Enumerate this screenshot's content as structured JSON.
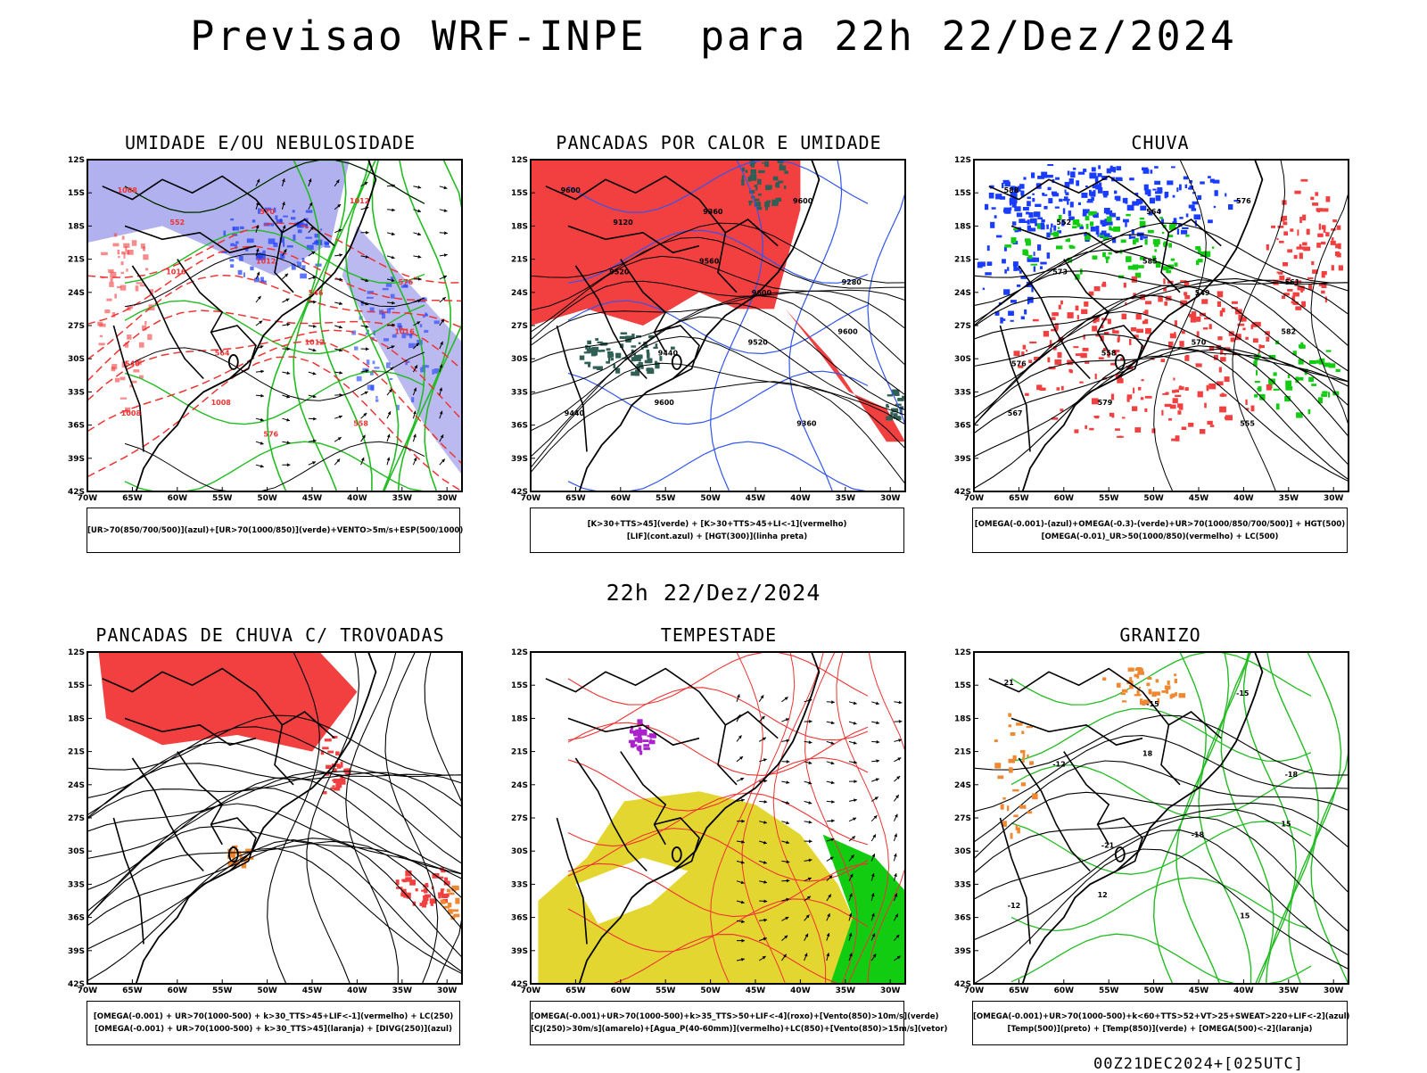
{
  "title": "Previsao WRF-INPE  para 22h 22/Dez/2024",
  "mid_title": "22h 22/Dez/2024",
  "footer": "00Z21DEC2024+[025UTC]",
  "axes": {
    "lat_labels": [
      "12S",
      "15S",
      "18S",
      "21S",
      "24S",
      "27S",
      "30S",
      "33S",
      "36S",
      "39S",
      "42S"
    ],
    "lon_labels": [
      "70W",
      "65W",
      "60W",
      "55W",
      "50W",
      "45W",
      "40W",
      "35W",
      "30W"
    ]
  },
  "colors": {
    "fill_red": "#f24040",
    "fill_blue": "#1a3cff",
    "fill_lightblue": "#a9a9ee",
    "fill_green": "#11cc11",
    "fill_darkteal": "#2f5f55",
    "fill_yellow": "#e3d630",
    "line_green": "#22bb22",
    "line_red": "#ee3333",
    "line_blue": "#3355ee",
    "line_orange": "#ee8833"
  },
  "panels": [
    {
      "title": "UMIDADE E/OU NEBULOSIDADE",
      "legend": [
        "[UR>70(850/700/500)](azul)+[UR>70(1000/850)](verde)+VENTO>5m/s+ESP(500/1000)"
      ],
      "contour_labels": [
        "1008",
        "1012",
        "1016",
        "1008",
        "1012",
        "1016",
        "1012",
        "1008",
        "570",
        "576",
        "564",
        "558",
        "552",
        "546",
        "540",
        "576"
      ]
    },
    {
      "title": "PANCADAS POR CALOR E UMIDADE",
      "legend": [
        "[K>30+TTS>45](verde) + [K>30+TTS>45+LI<-1](vermelho)",
        "[LIF](cont.azul) + [HGT(300)](linha preta)"
      ],
      "contour_labels": [
        "9600",
        "9560",
        "9600",
        "9600",
        "9600",
        "9520",
        "9520",
        "9440",
        "9360",
        "9280",
        "9440",
        "9360",
        "9120",
        "9600"
      ]
    },
    {
      "title": "CHUVA",
      "legend": [
        "[OMEGA(-0.001)-(azul)+OMEGA(-0.3)-(verde)+UR>70(1000/850/700/500)] + HGT(500)",
        "[OMEGA(-0.01)_UR>50(1000/850)(vermelho) + LC(500)"
      ],
      "contour_labels": [
        "588",
        "585",
        "582",
        "579",
        "576",
        "573",
        "570",
        "567",
        "564",
        "561",
        "558",
        "555",
        "552",
        "549",
        "576"
      ]
    },
    {
      "title": "PANCADAS DE CHUVA C/ TROVOADAS",
      "legend": [
        "[OMEGA(-0.001) + UR>70(1000-500) + k>30_TTS>45+LIF<-1](vermelho) + LC(250)",
        "[OMEGA(-0.001) + UR>70(1000-500) + k>30_TTS>45](laranja) + [DIVG(250)](azul)"
      ],
      "contour_labels": []
    },
    {
      "title": "TEMPESTADE",
      "legend": [
        "[OMEGA(-0.001)+UR>70(1000-500)+k>35_TTS>50+LIF<-4](roxo)+[Vento(850)>10m/s](verde)",
        "[CJ(250)>30m/s](amarelo)+[Agua_P(40-60mm)](vermelho)+LC(850)+[Vento(850)>15m/s](vetor)"
      ],
      "contour_labels": []
    },
    {
      "title": "GRANIZO",
      "legend": [
        "[OMEGA(-0.001)+UR>70(1000-500)+k<60+TTS>52+VT>25+SWEAT>220+LIF<-2](azul)",
        "[Temp(500)](preto) + [Temp(850)](verde) + [OMEGA(500)<-2](laranja)"
      ],
      "contour_labels": [
        "21",
        "18",
        "15",
        "12",
        "-15",
        "-12",
        "-18",
        "-12",
        "-15",
        "-18",
        "-21",
        "15"
      ]
    }
  ]
}
